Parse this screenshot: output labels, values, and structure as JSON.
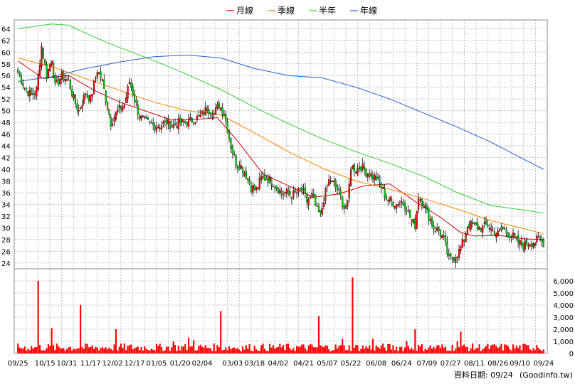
{
  "chart_data": [
    {
      "type": "candlestick",
      "title": "",
      "ylim": [
        23,
        65.5
      ],
      "y_ticks": [
        24,
        26,
        28,
        30,
        32,
        34,
        36,
        38,
        40,
        42,
        44,
        46,
        48,
        50,
        52,
        54,
        56,
        58,
        60,
        62,
        64
      ],
      "x_tick_labels": [
        "09/25",
        "10/15",
        "10/31",
        "11/17",
        "12/02",
        "12/17",
        "01/05",
        "01/20",
        "02/04",
        "03/03",
        "03/18",
        "04/02",
        "04/21",
        "05/07",
        "05/22",
        "06/08",
        "06/24",
        "07/09",
        "07/27",
        "08/11",
        "08/26",
        "09/10",
        "09/24"
      ],
      "grid": true,
      "legend_position": "top-center",
      "legend": [
        {
          "label": "月線",
          "color": "#cc0000"
        },
        {
          "label": "季線",
          "color": "#ff8000"
        },
        {
          "label": "半年",
          "color": "#33cc33"
        },
        {
          "label": "年線",
          "color": "#1f5fd0"
        }
      ],
      "up_color": "#ff0000",
      "down_color": "#00cc00",
      "close_anchors": [
        [
          0,
          56.5
        ],
        [
          4,
          54
        ],
        [
          8,
          52.5
        ],
        [
          11,
          53.5
        ],
        [
          14,
          61
        ],
        [
          17,
          56
        ],
        [
          20,
          59
        ],
        [
          22,
          54
        ],
        [
          26,
          56
        ],
        [
          30,
          55
        ],
        [
          33,
          52
        ],
        [
          36,
          50
        ],
        [
          40,
          53
        ],
        [
          43,
          52
        ],
        [
          47,
          57
        ],
        [
          50,
          55
        ],
        [
          52,
          52
        ],
        [
          55,
          48
        ],
        [
          59,
          50
        ],
        [
          63,
          51
        ],
        [
          66,
          55
        ],
        [
          69,
          52
        ],
        [
          72,
          49
        ],
        [
          76,
          48
        ],
        [
          80,
          47.5
        ],
        [
          84,
          47.5
        ],
        [
          88,
          48
        ],
        [
          92,
          47.5
        ],
        [
          96,
          48
        ],
        [
          100,
          48
        ],
        [
          104,
          48.5
        ],
        [
          108,
          49
        ],
        [
          112,
          50.5
        ],
        [
          116,
          49.5
        ],
        [
          119,
          51
        ],
        [
          122,
          49.5
        ],
        [
          124,
          47
        ],
        [
          126,
          44
        ],
        [
          129,
          41
        ],
        [
          132,
          40.5
        ],
        [
          135,
          39
        ],
        [
          138,
          37
        ],
        [
          141,
          36.5
        ],
        [
          144,
          38.5
        ],
        [
          147,
          38.5
        ],
        [
          150,
          38
        ],
        [
          153,
          37
        ],
        [
          156,
          36
        ],
        [
          159,
          36
        ],
        [
          162,
          35.5
        ],
        [
          165,
          36
        ],
        [
          168,
          36.5
        ],
        [
          171,
          34.5
        ],
        [
          174,
          35.5
        ],
        [
          177,
          33
        ],
        [
          179,
          32
        ],
        [
          181,
          35
        ],
        [
          184,
          38
        ],
        [
          187,
          37.5
        ],
        [
          190,
          36
        ],
        [
          193,
          33.5
        ],
        [
          195,
          34
        ],
        [
          197,
          40.5
        ],
        [
          200,
          40
        ],
        [
          203,
          40.5
        ],
        [
          206,
          39.5
        ],
        [
          209,
          39
        ],
        [
          212,
          38.5
        ],
        [
          215,
          37
        ],
        [
          218,
          35
        ],
        [
          221,
          34.5
        ],
        [
          224,
          34
        ],
        [
          227,
          34.5
        ],
        [
          230,
          33.5
        ],
        [
          233,
          31
        ],
        [
          235,
          30.5
        ],
        [
          237,
          35.5
        ],
        [
          240,
          34
        ],
        [
          243,
          32
        ],
        [
          246,
          30
        ],
        [
          249,
          29.5
        ],
        [
          252,
          28
        ],
        [
          255,
          24.5
        ],
        [
          258,
          25
        ],
        [
          261,
          26
        ],
        [
          264,
          28
        ],
        [
          266,
          30.5
        ],
        [
          269,
          30.5
        ],
        [
          272,
          30
        ],
        [
          275,
          30
        ],
        [
          278,
          30.5
        ],
        [
          281,
          29.5
        ],
        [
          284,
          29
        ],
        [
          287,
          30
        ],
        [
          290,
          29
        ],
        [
          293,
          28.5
        ],
        [
          296,
          27.5
        ],
        [
          299,
          27
        ],
        [
          302,
          27.5
        ],
        [
          305,
          27.5
        ],
        [
          308,
          28
        ],
        [
          311,
          27.5
        ]
      ],
      "series": [
        {
          "name": "月線",
          "points": [
            [
              0,
              58.5
            ],
            [
              15,
              55.5
            ],
            [
              30,
              56
            ],
            [
              45,
              53.5
            ],
            [
              60,
              51.5
            ],
            [
              75,
              50
            ],
            [
              90,
              48.5
            ],
            [
              105,
              48.5
            ],
            [
              118,
              48.8
            ],
            [
              130,
              44.8
            ],
            [
              145,
              39.2
            ],
            [
              160,
              37.2
            ],
            [
              175,
              35.2
            ],
            [
              190,
              35.8
            ],
            [
              205,
              37.2
            ],
            [
              220,
              37.5
            ],
            [
              235,
              34.5
            ],
            [
              250,
              31.8
            ],
            [
              262,
              29.2
            ],
            [
              270,
              28.6
            ],
            [
              285,
              28.7
            ],
            [
              300,
              28.1
            ],
            [
              311,
              28.0
            ]
          ]
        },
        {
          "name": "季線",
          "points": [
            [
              0,
              59
            ],
            [
              20,
              57.5
            ],
            [
              40,
              55.5
            ],
            [
              60,
              53.5
            ],
            [
              80,
              51.5
            ],
            [
              100,
              50.0
            ],
            [
              120,
              49.3
            ],
            [
              140,
              46.2
            ],
            [
              160,
              43.0
            ],
            [
              180,
              40.2
            ],
            [
              200,
              38.0
            ],
            [
              220,
              36.6
            ],
            [
              240,
              35.0
            ],
            [
              260,
              33.2
            ],
            [
              280,
              31.2
            ],
            [
              300,
              29.8
            ],
            [
              311,
              29.0
            ]
          ]
        },
        {
          "name": "半年",
          "points": [
            [
              0,
              64.0
            ],
            [
              20,
              64.8
            ],
            [
              30,
              64.6
            ],
            [
              45,
              62.6
            ],
            [
              60,
              60.8
            ],
            [
              80,
              58.6
            ],
            [
              100,
              56.2
            ],
            [
              120,
              53.6
            ],
            [
              140,
              50.6
            ],
            [
              160,
              47.8
            ],
            [
              180,
              45.2
            ],
            [
              200,
              43.0
            ],
            [
              220,
              41.0
            ],
            [
              240,
              38.8
            ],
            [
              260,
              36.0
            ],
            [
              280,
              33.8
            ],
            [
              300,
              33.0
            ],
            [
              311,
              32.5
            ]
          ]
        },
        {
          "name": "年線",
          "points": [
            [
              0,
              55.0
            ],
            [
              20,
              55.8
            ],
            [
              40,
              57.2
            ],
            [
              60,
              58.3
            ],
            [
              80,
              59.2
            ],
            [
              100,
              59.5
            ],
            [
              120,
              59.0
            ],
            [
              140,
              57.2
            ],
            [
              160,
              56.0
            ],
            [
              180,
              55.6
            ],
            [
              200,
              54.0
            ],
            [
              220,
              52.0
            ],
            [
              240,
              49.6
            ],
            [
              260,
              47.2
            ],
            [
              280,
              44.6
            ],
            [
              300,
              41.6
            ],
            [
              311,
              40.0
            ]
          ]
        }
      ]
    },
    {
      "type": "bar",
      "title": "",
      "ylim": [
        0,
        7000
      ],
      "y_ticks": [
        0,
        1000,
        2000,
        3000,
        4000,
        5000,
        6000
      ],
      "y_tick_labels": [
        "0",
        "1,000",
        "2,000",
        "3,000",
        "4,000",
        "5,000",
        "6,000"
      ],
      "color": "#ff0000",
      "volume_spikes": [
        [
          12,
          6000
        ],
        [
          20,
          2100
        ],
        [
          37,
          4000
        ],
        [
          58,
          2000
        ],
        [
          92,
          1000
        ],
        [
          101,
          1300
        ],
        [
          104,
          1100
        ],
        [
          120,
          3500
        ],
        [
          178,
          3100
        ],
        [
          192,
          1200
        ],
        [
          198,
          6300
        ],
        [
          210,
          1200
        ],
        [
          230,
          1000
        ],
        [
          235,
          2000
        ],
        [
          260,
          1000
        ],
        [
          262,
          1800
        ],
        [
          290,
          600
        ],
        [
          307,
          700
        ]
      ],
      "volume_base": 550
    }
  ],
  "footer": {
    "date_label": "資料日期: 09/24",
    "site": "(Goodinfo.tw)"
  }
}
